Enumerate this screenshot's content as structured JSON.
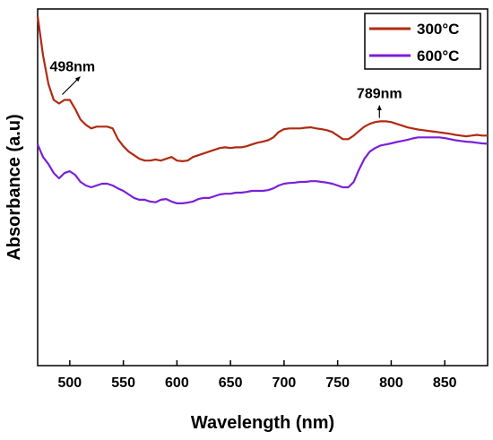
{
  "chart_data": {
    "type": "line",
    "title": "",
    "xlabel": "Wavelength (nm)",
    "ylabel": "Absorbance (a.u)",
    "xlim": [
      470,
      890
    ],
    "ylim": [
      0,
      1
    ],
    "x_ticks": [
      500,
      550,
      600,
      650,
      700,
      750,
      800,
      850
    ],
    "y_ticks": [],
    "grid": false,
    "legend_position": "top-right",
    "series": [
      {
        "name": "300°C",
        "color": "#b02a12",
        "x": [
          470,
          475,
          480,
          485,
          490,
          495,
          500,
          505,
          510,
          515,
          520,
          525,
          530,
          535,
          540,
          545,
          550,
          555,
          560,
          565,
          570,
          575,
          580,
          585,
          590,
          595,
          600,
          605,
          610,
          615,
          620,
          625,
          630,
          635,
          640,
          645,
          650,
          655,
          660,
          665,
          670,
          675,
          680,
          685,
          690,
          695,
          700,
          705,
          710,
          715,
          720,
          725,
          730,
          735,
          740,
          745,
          750,
          755,
          760,
          765,
          770,
          775,
          780,
          785,
          790,
          795,
          800,
          805,
          810,
          815,
          820,
          825,
          830,
          835,
          840,
          845,
          850,
          855,
          860,
          865,
          870,
          875,
          880,
          885,
          890
        ],
        "values": [
          0.98,
          0.87,
          0.79,
          0.745,
          0.735,
          0.745,
          0.745,
          0.72,
          0.69,
          0.675,
          0.665,
          0.67,
          0.67,
          0.67,
          0.665,
          0.635,
          0.615,
          0.6,
          0.59,
          0.58,
          0.575,
          0.575,
          0.578,
          0.575,
          0.58,
          0.585,
          0.575,
          0.573,
          0.575,
          0.585,
          0.59,
          0.595,
          0.6,
          0.605,
          0.61,
          0.612,
          0.61,
          0.612,
          0.612,
          0.615,
          0.62,
          0.625,
          0.628,
          0.632,
          0.64,
          0.655,
          0.663,
          0.665,
          0.665,
          0.665,
          0.667,
          0.668,
          0.665,
          0.663,
          0.66,
          0.655,
          0.645,
          0.635,
          0.635,
          0.645,
          0.658,
          0.67,
          0.678,
          0.683,
          0.685,
          0.685,
          0.683,
          0.678,
          0.673,
          0.668,
          0.665,
          0.662,
          0.66,
          0.658,
          0.656,
          0.654,
          0.652,
          0.65,
          0.647,
          0.645,
          0.643,
          0.645,
          0.647,
          0.645,
          0.645
        ]
      },
      {
        "name": "600°C",
        "color": "#7a20d8",
        "x": [
          470,
          475,
          480,
          485,
          490,
          495,
          500,
          505,
          510,
          515,
          520,
          525,
          530,
          535,
          540,
          545,
          550,
          555,
          560,
          565,
          570,
          575,
          580,
          585,
          590,
          595,
          600,
          605,
          610,
          615,
          620,
          625,
          630,
          635,
          640,
          645,
          650,
          655,
          660,
          665,
          670,
          675,
          680,
          685,
          690,
          695,
          700,
          705,
          710,
          715,
          720,
          725,
          730,
          735,
          740,
          745,
          750,
          755,
          760,
          765,
          770,
          775,
          780,
          785,
          790,
          795,
          800,
          805,
          810,
          815,
          820,
          825,
          830,
          835,
          840,
          845,
          850,
          855,
          860,
          865,
          870,
          875,
          880,
          885,
          890
        ],
        "values": [
          0.62,
          0.585,
          0.565,
          0.54,
          0.525,
          0.54,
          0.545,
          0.535,
          0.515,
          0.505,
          0.5,
          0.505,
          0.51,
          0.51,
          0.505,
          0.497,
          0.49,
          0.48,
          0.47,
          0.465,
          0.465,
          0.46,
          0.458,
          0.465,
          0.467,
          0.46,
          0.455,
          0.455,
          0.457,
          0.46,
          0.467,
          0.47,
          0.47,
          0.475,
          0.48,
          0.482,
          0.482,
          0.485,
          0.485,
          0.487,
          0.49,
          0.49,
          0.49,
          0.492,
          0.497,
          0.505,
          0.51,
          0.512,
          0.513,
          0.515,
          0.515,
          0.517,
          0.517,
          0.515,
          0.513,
          0.51,
          0.505,
          0.5,
          0.5,
          0.515,
          0.55,
          0.58,
          0.6,
          0.61,
          0.617,
          0.62,
          0.623,
          0.627,
          0.63,
          0.633,
          0.637,
          0.64,
          0.64,
          0.64,
          0.64,
          0.64,
          0.638,
          0.635,
          0.632,
          0.63,
          0.628,
          0.627,
          0.625,
          0.623,
          0.622
        ]
      }
    ],
    "annotations": [
      {
        "text": "498nm",
        "x": 498,
        "series_index": 0
      },
      {
        "text": "789nm",
        "x": 789,
        "series_index": 0
      }
    ]
  }
}
